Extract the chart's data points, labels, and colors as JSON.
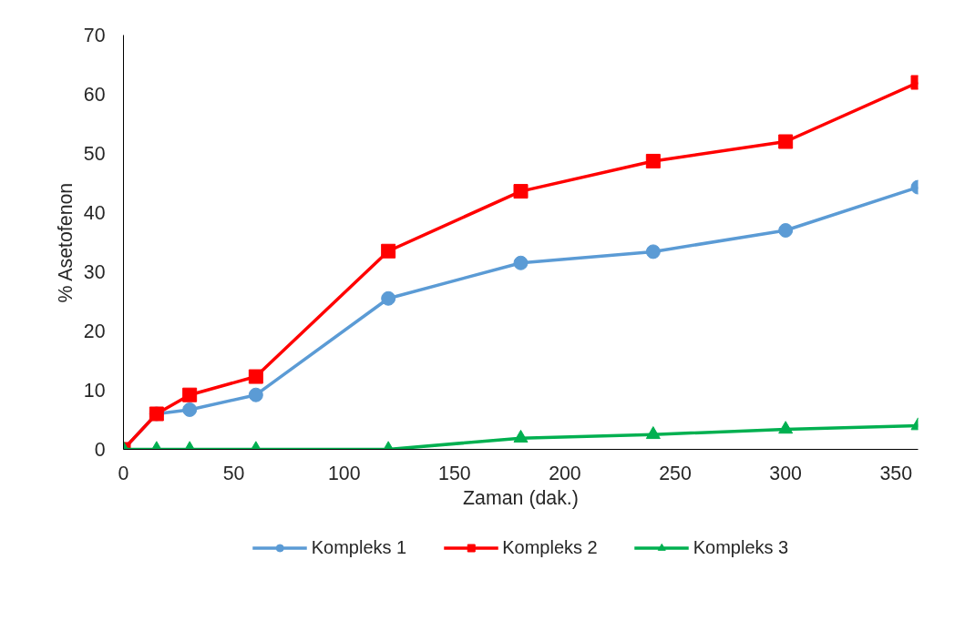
{
  "chart_data": {
    "type": "line",
    "xlabel": "Zaman (dak.)",
    "ylabel": "% Asetofenon",
    "x": [
      0,
      15,
      30,
      60,
      120,
      180,
      240,
      300,
      360
    ],
    "series": [
      {
        "name": "Kompleks 1",
        "color": "#5b9bd5",
        "marker": "circle",
        "values": [
          0,
          6,
          6.7,
          9.2,
          25.5,
          31.5,
          33.4,
          37,
          44.3
        ]
      },
      {
        "name": "Kompleks 2",
        "color": "#ff0000",
        "marker": "square",
        "values": [
          0,
          6,
          9.2,
          12.3,
          33.5,
          43.6,
          48.7,
          52,
          62
        ]
      },
      {
        "name": "Kompleks 3",
        "color": "#00b050",
        "marker": "triangle",
        "values": [
          0,
          0,
          0,
          0,
          0,
          1.9,
          2.5,
          3.4,
          4
        ]
      }
    ],
    "xlim": [
      0,
      360
    ],
    "xticks": [
      0,
      50,
      100,
      150,
      200,
      250,
      300,
      350
    ],
    "ylim": [
      0,
      70
    ],
    "yticks": [
      0,
      10,
      20,
      30,
      40,
      50,
      60,
      70
    ],
    "grid": false,
    "legend": "bottom",
    "line_style": "solid"
  }
}
